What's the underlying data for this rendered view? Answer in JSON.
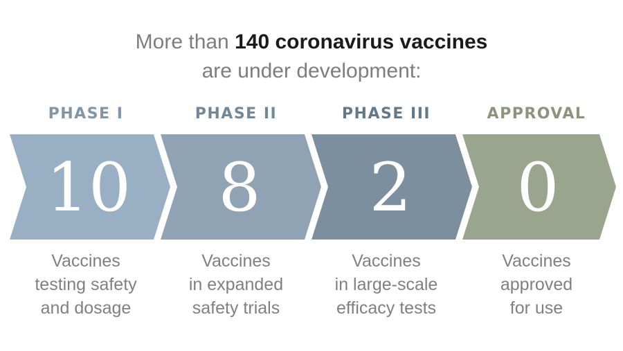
{
  "headline": {
    "lead": "More than ",
    "highlight": "140 coronavirus vaccines",
    "line2": "are under development:"
  },
  "stages": [
    {
      "label": "PHASE I",
      "count": "10",
      "color": "#99b0c4",
      "label_color": "#7f95a8",
      "description": [
        "Vaccines",
        "testing safety",
        "and dosage"
      ]
    },
    {
      "label": "PHASE II",
      "count": "8",
      "color": "#8fa3b5",
      "label_color": "#71889b",
      "description": [
        "Vaccines",
        "in expanded",
        "safety trials"
      ]
    },
    {
      "label": "PHASE III",
      "count": "2",
      "color": "#7b8f9f",
      "label_color": "#637888",
      "description": [
        "Vaccines",
        "in large-scale",
        "efficacy tests"
      ]
    },
    {
      "label": "APPROVAL",
      "count": "0",
      "color": "#9aa58e",
      "label_color": "#8a957c",
      "description": [
        "Vaccines",
        "approved",
        "for use"
      ]
    }
  ]
}
